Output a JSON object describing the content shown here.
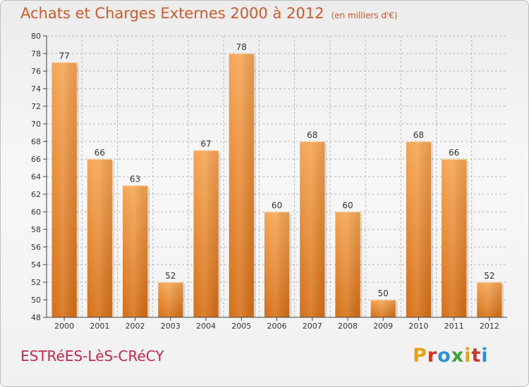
{
  "header": {
    "title": "Achats et Charges Externes 2000 à 2012",
    "unit": "(en milliers d'€)"
  },
  "footer": {
    "location": "ESTRéES-LèS-CRéCY",
    "brand_letters": [
      "P",
      "r",
      "o",
      "x",
      "i",
      "t",
      "i"
    ],
    "brand_colors": [
      "#e8a21a",
      "#d0342c",
      "#2f8fd8",
      "#3aa63a",
      "#e8a21a",
      "#d0342c",
      "#2f8fd8"
    ]
  },
  "colors": {
    "bar_top": "#f6a553",
    "bar_bottom": "#d66f16",
    "grid": "#b8b8b8",
    "axis": "#444444"
  },
  "chart_data": {
    "type": "bar",
    "title": "Achats et Charges Externes 2000 à 2012",
    "subtitle": "(en milliers d'€)",
    "xlabel": "",
    "ylabel": "",
    "categories": [
      "2000",
      "2001",
      "2002",
      "2003",
      "2004",
      "2005",
      "2006",
      "2007",
      "2008",
      "2009",
      "2010",
      "2011",
      "2012"
    ],
    "values": [
      77,
      66,
      63,
      52,
      67,
      78,
      60,
      68,
      60,
      50,
      68,
      66,
      52
    ],
    "ylim": [
      48,
      80
    ],
    "yticks": [
      48,
      50,
      52,
      54,
      56,
      58,
      60,
      62,
      64,
      66,
      68,
      70,
      72,
      74,
      76,
      78,
      80
    ],
    "grid": true,
    "data_labels": true
  }
}
